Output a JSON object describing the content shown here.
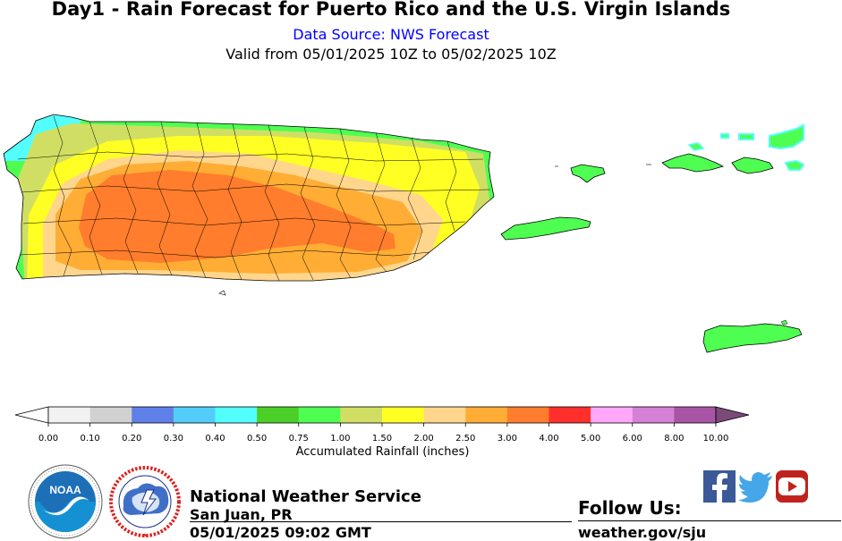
{
  "header": {
    "title": "Day1 - Rain Forecast for Puerto Rico and the U.S. Virgin Islands",
    "source": "Data Source: NWS Forecast",
    "valid": "Valid from 05/01/2025 10Z to 05/02/2025 10Z"
  },
  "colorbar": {
    "title": "Accumulated Rainfall (inches)",
    "ticks": [
      "0.00",
      "0.10",
      "0.20",
      "0.30",
      "0.40",
      "0.50",
      "0.75",
      "1.00",
      "1.50",
      "2.00",
      "2.50",
      "3.00",
      "4.00",
      "5.00",
      "6.00",
      "8.00",
      "10.00"
    ],
    "colors": [
      "#f2f2f2",
      "#d1d1d1",
      "#5f80e8",
      "#52cdfa",
      "#52fffd",
      "#4ccf27",
      "#4eff51",
      "#d0df63",
      "#ffff23",
      "#ffd68c",
      "#ffad34",
      "#ff7d2c",
      "#ff2f2c",
      "#ffa8f9",
      "#d481d6",
      "#a855a5"
    ],
    "under_color": "#ffffff",
    "over_color": "#7b4a78"
  },
  "map": {
    "regions": [
      "Puerto Rico",
      "Vieques",
      "Culebra",
      "St. Thomas",
      "St. John",
      "St. Croix"
    ],
    "rain_colors": {
      "coast_light": "#52fffd",
      "coast_green": "#4eff51",
      "band_olive": "#d0df63",
      "band_yellow": "#ffff23",
      "band_peach": "#ffd68c",
      "band_orange": "#ffad34",
      "core_orange": "#ff7d2c"
    }
  },
  "footer": {
    "agency": "National Weather Service",
    "office": "San Juan, PR",
    "timestamp": "05/01/2025 09:02 GMT",
    "follow": "Follow Us:",
    "website": "weather.gov/sju",
    "noaa_logo_text": "NOAA",
    "noaa_ring_text": "NATIONAL OCEANIC AND ATMOSPHERIC ADMINISTRATION · U.S. DEPARTMENT OF COMMERCE",
    "nws_ring_text": "NATIONAL WEATHER SERVICE"
  },
  "social": [
    "facebook-icon",
    "twitter-icon",
    "youtube-icon"
  ]
}
